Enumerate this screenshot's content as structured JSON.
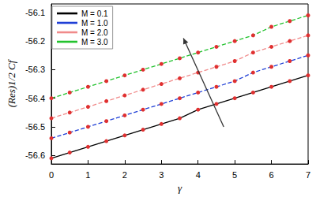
{
  "chart_data": {
    "type": "line",
    "x_label": "γ",
    "y_label": "(Res)1/2 Cf",
    "x": [
      0,
      0.5,
      1,
      1.5,
      2,
      2.5,
      3,
      3.5,
      4,
      4.5,
      5,
      5.5,
      6,
      6.5,
      7
    ],
    "series": [
      {
        "name": "M = 0.1",
        "color": "#000000",
        "line_style": "solid",
        "values": [
          -56.61,
          -56.59,
          -56.57,
          -56.55,
          -56.53,
          -56.51,
          -56.49,
          -56.47,
          -56.44,
          -56.42,
          -56.4,
          -56.38,
          -56.36,
          -56.34,
          -56.32
        ]
      },
      {
        "name": "M = 1.0",
        "color": "#1f3fd6",
        "line_style": "dashed",
        "values": [
          -56.54,
          -56.52,
          -56.5,
          -56.48,
          -56.46,
          -56.44,
          -56.42,
          -56.4,
          -56.38,
          -56.36,
          -56.34,
          -56.31,
          -56.29,
          -56.27,
          -56.25
        ]
      },
      {
        "name": "M = 2.0",
        "color": "#f08a8a",
        "line_style": "dashed",
        "values": [
          -56.47,
          -56.45,
          -56.43,
          -56.41,
          -56.39,
          -56.37,
          -56.35,
          -56.33,
          -56.31,
          -56.29,
          -56.27,
          -56.24,
          -56.22,
          -56.2,
          -56.18
        ]
      },
      {
        "name": "M = 3.0",
        "color": "#22c22e",
        "line_style": "dashed",
        "values": [
          -56.4,
          -56.38,
          -56.36,
          -56.34,
          -56.32,
          -56.3,
          -56.28,
          -56.26,
          -56.24,
          -56.22,
          -56.2,
          -56.18,
          -56.15,
          -56.13,
          -56.11
        ]
      }
    ],
    "marker": "circle",
    "xlim": [
      0,
      7
    ],
    "xticks": [
      0,
      1,
      2,
      3,
      4,
      5,
      6,
      7
    ],
    "ylim": [
      -56.63,
      -56.07
    ],
    "yticks": [
      -56.6,
      -56.5,
      -56.4,
      -56.3,
      -56.2,
      -56.1
    ],
    "grid": false,
    "legend": "upper left"
  }
}
